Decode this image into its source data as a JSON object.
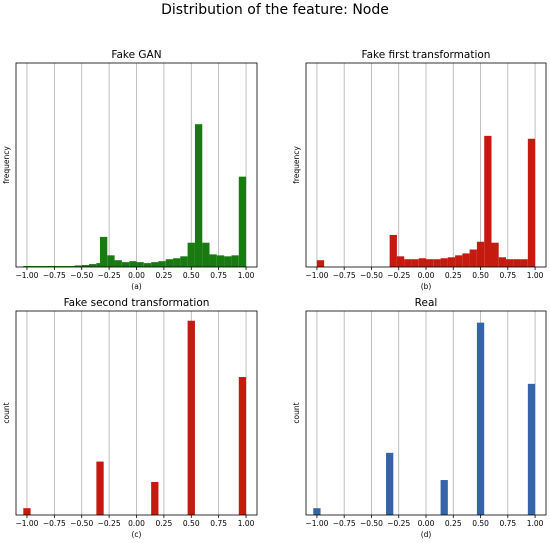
{
  "figure_title": "Distribution of the feature: Node",
  "x_ticks": [
    "−1.00",
    "−0.75",
    "−0.50",
    "−0.25",
    "0.00",
    "0.25",
    "0.50",
    "0.75",
    "1.00"
  ],
  "chart_data": [
    {
      "type": "bar",
      "title": "Fake GAN",
      "sublabel": "(a)",
      "ylabel": "frequency",
      "xlabel": "",
      "color": "#1a7a12",
      "xlim": [
        -1.1,
        1.1
      ],
      "ylim": [
        0,
        1.05
      ],
      "grid": "vertical",
      "bin_width": 0.0667,
      "x": [
        -1.0,
        -0.933,
        -0.867,
        -0.8,
        -0.733,
        -0.667,
        -0.6,
        -0.533,
        -0.467,
        -0.4,
        -0.333,
        -0.3,
        -0.233,
        -0.167,
        -0.1,
        -0.033,
        0.033,
        0.1,
        0.167,
        0.233,
        0.3,
        0.367,
        0.433,
        0.5,
        0.567,
        0.633,
        0.7,
        0.767,
        0.833,
        0.9,
        0.967
      ],
      "values": [
        0.005,
        0.005,
        0.005,
        0.005,
        0.005,
        0.005,
        0.005,
        0.008,
        0.01,
        0.015,
        0.02,
        0.155,
        0.06,
        0.035,
        0.025,
        0.03,
        0.025,
        0.02,
        0.025,
        0.03,
        0.04,
        0.045,
        0.055,
        0.125,
        0.735,
        0.125,
        0.065,
        0.06,
        0.055,
        0.06,
        0.465
      ]
    },
    {
      "type": "bar",
      "title": "Fake first transformation",
      "sublabel": "(b)",
      "ylabel": "frequency",
      "xlabel": "",
      "color": "#c41a10",
      "xlim": [
        -1.1,
        1.1
      ],
      "ylim": [
        0,
        1.05
      ],
      "grid": "vertical",
      "bin_width": 0.0667,
      "x": [
        -0.967,
        -0.3,
        -0.233,
        -0.167,
        -0.1,
        -0.033,
        0.033,
        0.1,
        0.167,
        0.233,
        0.3,
        0.367,
        0.433,
        0.5,
        0.567,
        0.633,
        0.7,
        0.767,
        0.833,
        0.9,
        0.967
      ],
      "values": [
        0.035,
        0.165,
        0.055,
        0.04,
        0.04,
        0.045,
        0.04,
        0.04,
        0.045,
        0.05,
        0.06,
        0.07,
        0.09,
        0.13,
        0.675,
        0.125,
        0.05,
        0.04,
        0.04,
        0.04,
        0.66
      ]
    },
    {
      "type": "bar",
      "title": "Fake second transformation",
      "sublabel": "(c)",
      "ylabel": "count",
      "xlabel": "",
      "color": "#c41a10",
      "xlim": [
        -1.1,
        1.1
      ],
      "ylim": [
        0,
        1.05
      ],
      "grid": "vertical",
      "bin_width": 0.0667,
      "x": [
        -1.0,
        -0.333,
        0.167,
        0.5,
        0.967
      ],
      "values": [
        0.035,
        0.275,
        0.17,
        1.0,
        0.71
      ]
    },
    {
      "type": "bar",
      "title": "Real",
      "sublabel": "(d)",
      "ylabel": "count",
      "xlabel": "",
      "color": "#3565a8",
      "xlim": [
        -1.1,
        1.1
      ],
      "ylim": [
        0,
        1.05
      ],
      "grid": "vertical",
      "bin_width": 0.0667,
      "x": [
        -1.0,
        -0.333,
        0.167,
        0.5,
        0.967
      ],
      "values": [
        0.035,
        0.32,
        0.18,
        0.99,
        0.675
      ]
    }
  ]
}
